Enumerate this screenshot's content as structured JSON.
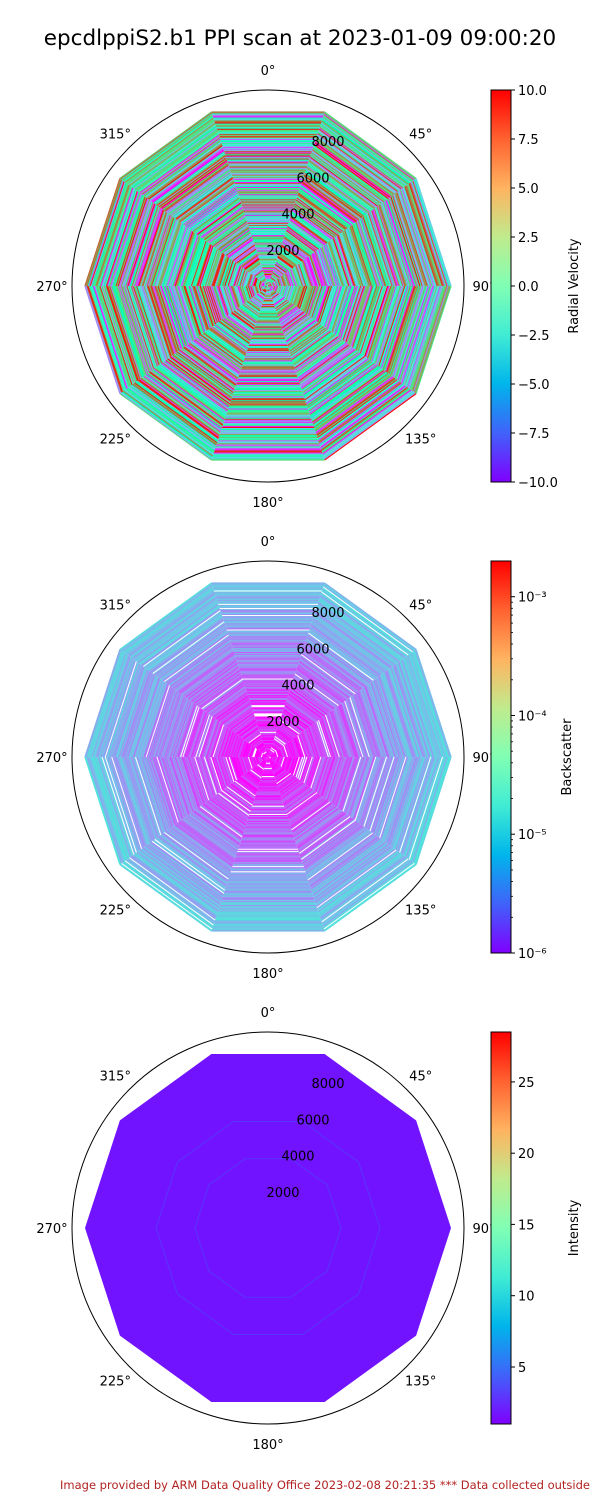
{
  "title": "epcdlppiS2.b1 PPI scan at 2023-01-09 09:00:20",
  "footer": "Image provided by ARM Data Quality Office 2023-02-08 20:21:35    *** Data collected outside",
  "chart_data": [
    {
      "type": "polar-ppi",
      "angle_ticks": [
        "0°",
        "45°",
        "90°",
        "135°",
        "180°",
        "225°",
        "270°",
        "315°"
      ],
      "radial_ticks": [
        2000,
        4000,
        6000,
        8000
      ],
      "rmax": 10000,
      "sector_count": 10,
      "colorbar": {
        "label": "Radial Velocity",
        "scale": "linear",
        "min": -10.0,
        "max": 10.0,
        "ticks": [
          "10.0",
          "7.5",
          "5.0",
          "2.5",
          "0.0",
          "−2.5",
          "−5.0",
          "−7.5",
          "−10.0"
        ],
        "tick_values": [
          10,
          7.5,
          5,
          2.5,
          0,
          -2.5,
          -5,
          -7.5,
          -10
        ]
      },
      "field": "noisy"
    },
    {
      "type": "polar-ppi",
      "angle_ticks": [
        "0°",
        "45°",
        "90°",
        "135°",
        "180°",
        "225°",
        "270°",
        "315°"
      ],
      "radial_ticks": [
        2000,
        4000,
        6000,
        8000
      ],
      "rmax": 10000,
      "sector_count": 10,
      "colorbar": {
        "label": "Backscatter",
        "scale": "log",
        "min": 1e-06,
        "max": 0.002,
        "ticks": [
          "10⁻³",
          "10⁻⁴",
          "10⁻⁵",
          "10⁻⁶"
        ],
        "tick_values": [
          0.001,
          0.0001,
          1e-05,
          1e-06
        ]
      },
      "field": "backscatter"
    },
    {
      "type": "polar-ppi",
      "angle_ticks": [
        "0°",
        "45°",
        "90°",
        "135°",
        "180°",
        "225°",
        "270°",
        "315°"
      ],
      "radial_ticks": [
        2000,
        4000,
        6000,
        8000
      ],
      "rmax": 10000,
      "sector_count": 10,
      "colorbar": {
        "label": "Intensity",
        "scale": "linear",
        "min": 1.0,
        "max": 28.5,
        "ticks": [
          "25",
          "20",
          "15",
          "10",
          "5"
        ],
        "tick_values": [
          25,
          20,
          15,
          10,
          5
        ]
      },
      "field": "uniform"
    }
  ]
}
